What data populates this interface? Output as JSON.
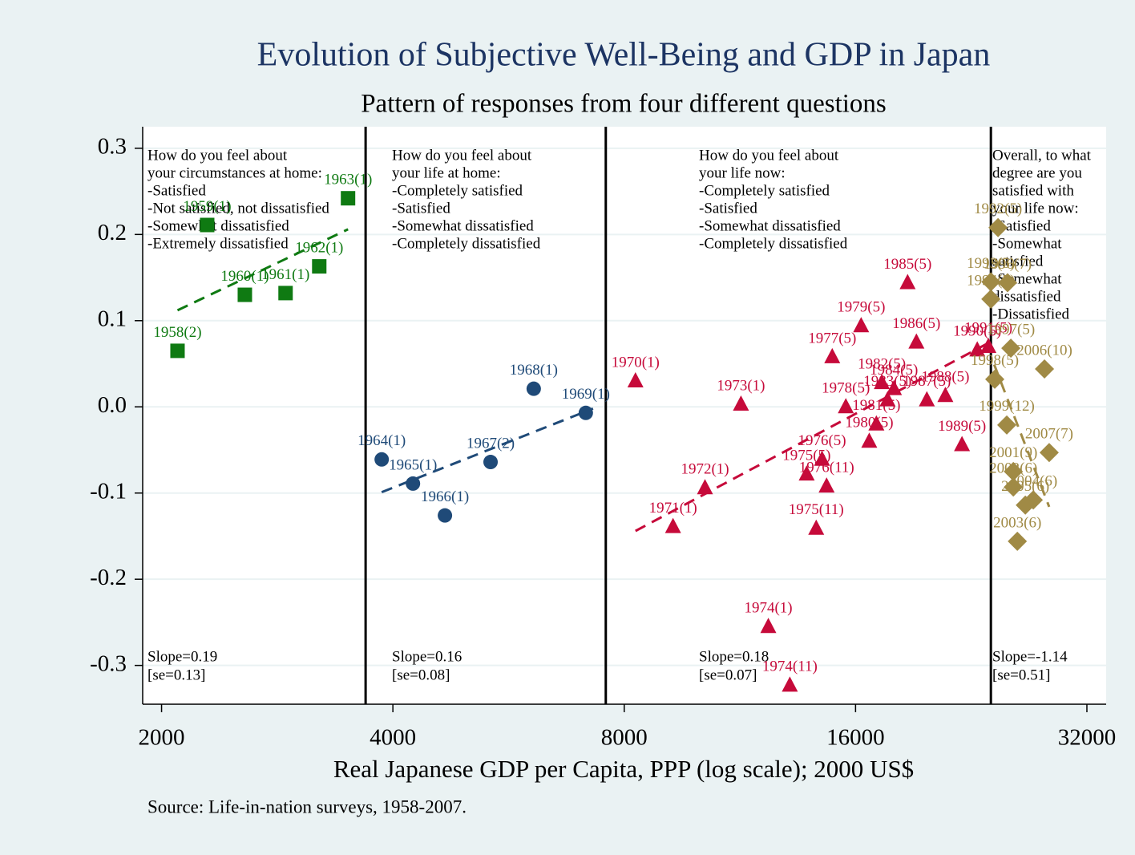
{
  "chart_data": {
    "type": "scatter",
    "title": "Evolution of Subjective Well-Being and GDP in Japan",
    "subtitle": "Pattern of responses from four different questions",
    "x_label": "Real Japanese GDP per Capita, PPP (log scale); 2000 US$",
    "source": "Source: Life-in-nation surveys, 1958-2007.",
    "x_scale": "log",
    "grid": true,
    "xlim": [
      1890,
      33900
    ],
    "ylim": [
      -0.345,
      0.325
    ],
    "xticks": [
      2000,
      4000,
      8000,
      16000,
      32000
    ],
    "yticks": [
      0.3,
      0.2,
      0.1,
      {
        "value": 0,
        "label": "0.0"
      },
      -0.1,
      -0.2,
      -0.3
    ],
    "xlines": [
      3686,
      7570,
      24000
    ],
    "panels": [
      {
        "text": [
          "How do you feel about",
          "your circumstances at home:",
          "-Satisfied",
          "-Not satisfied, not dissatisfied",
          "-Somewhat dissatisfied",
          "-Extremely dissatisfied"
        ],
        "slope": "Slope=0.19",
        "se": "[se=0.13]"
      },
      {
        "text": [
          "How do you feel about",
          "your life at home:",
          "-Completely satisfied",
          "-Satisfied",
          "-Somewhat dissatisfied",
          "-Completely dissatisfied"
        ],
        "slope": "Slope=0.16",
        "se": "[se=0.08]"
      },
      {
        "text": [
          "How do you feel about",
          "your life now:",
          "-Completely satisfied",
          "-Satisfied",
          "-Somewhat dissatisfied",
          "-Completely dissatisfied"
        ],
        "slope": "Slope=0.18",
        "se": "[se=0.07]"
      },
      {
        "text": [
          "Overall, to what",
          "degree are you",
          "satisfied with",
          "your life now:",
          "-Satisfied",
          "-Somewhat",
          "satisfied",
          "-Somewhat",
          "dissatisfied",
          "-Dissatisfied"
        ],
        "slope": "Slope=-1.14",
        "se": "[se=0.51]"
      }
    ],
    "series": [
      {
        "marker": "square",
        "color": "#0f7a12",
        "labels": [
          "1958(2)",
          "1959(1)",
          "1960(1)",
          "1961(1)",
          "1962(1)",
          "1963(1)"
        ],
        "x": [
          2098,
          2293,
          2567,
          2900,
          3208,
          3497
        ],
        "values": [
          0.065,
          0.211,
          0.13,
          0.132,
          0.163,
          0.242
        ],
        "fit": {
          "x": [
            2098,
            3497
          ],
          "y": [
            0.112,
            0.206
          ]
        }
      },
      {
        "marker": "circle",
        "color": "#1f4a78",
        "labels": [
          "1964(1)",
          "1965(1)",
          "1966(1)",
          "1967(2)",
          "1968(1)",
          "1969(1)"
        ],
        "x": [
          3868,
          4248,
          4675,
          5360,
          6100,
          7130
        ],
        "values": [
          -0.061,
          -0.089,
          -0.126,
          -0.064,
          0.021,
          -0.007
        ],
        "fit": {
          "x": [
            3868,
            7286
          ],
          "y": [
            -0.099,
            -0.002
          ]
        }
      },
      {
        "marker": "triangle",
        "color": "#c60a3a",
        "labels": [
          "1970(1)",
          "1971(1)",
          "1972(1)",
          "1973(1)",
          "1974(1)",
          "1974(11)",
          "1975(5)",
          "1975(11)",
          "1976(5)",
          "1976(11)",
          "1977(5)",
          "1978(5)",
          "1979(5)",
          "1980(5)",
          "1981(5)",
          "1982(5)",
          "1983(5)",
          "1984(5)",
          "1985(5)",
          "1986(5)",
          "1987(5)",
          "1988(5)",
          "1989(5)",
          "1990(5)",
          "1991(5)"
        ],
        "x": [
          8274,
          9260,
          10190,
          11350,
          12320,
          13140,
          13820,
          14220,
          14470,
          14670,
          14920,
          15540,
          16270,
          16670,
          17030,
          17310,
          17610,
          17950,
          18700,
          19200,
          19810,
          20940,
          22010,
          23040,
          23820
        ],
        "values": [
          0.03,
          -0.139,
          -0.094,
          0.003,
          -0.255,
          -0.323,
          -0.078,
          -0.141,
          -0.061,
          -0.092,
          0.058,
          0.0,
          0.094,
          -0.04,
          -0.02,
          0.028,
          0.008,
          0.021,
          0.144,
          0.075,
          0.008,
          0.013,
          -0.044,
          0.066,
          0.07
        ],
        "fit": {
          "x": [
            8274,
            23930
          ],
          "y": [
            -0.144,
            0.075
          ]
        }
      },
      {
        "marker": "diamond",
        "color": "#a08a45",
        "labels": [
          "1992(5)",
          "1993(5)",
          "1996(7)",
          "1994(5)",
          "1997(5)",
          "1998(5)",
          "1999(12)",
          "2001(9)",
          "2002(6)",
          "2003(6)",
          "2004(6)",
          "2005(6)",
          "2006(10)",
          "2007(7)"
        ],
        "x": [
          24520,
          24000,
          25230,
          24000,
          25480,
          24280,
          25170,
          25670,
          25670,
          25980,
          27250,
          26610,
          28180,
          28580
        ],
        "values": [
          0.208,
          0.145,
          0.144,
          0.125,
          0.068,
          0.032,
          -0.021,
          -0.075,
          -0.093,
          -0.156,
          -0.108,
          -0.114,
          0.044,
          -0.053
        ],
        "fit": {
          "x": [
            24240,
            28580
          ],
          "y": [
            0.049,
            -0.116
          ]
        }
      }
    ]
  }
}
